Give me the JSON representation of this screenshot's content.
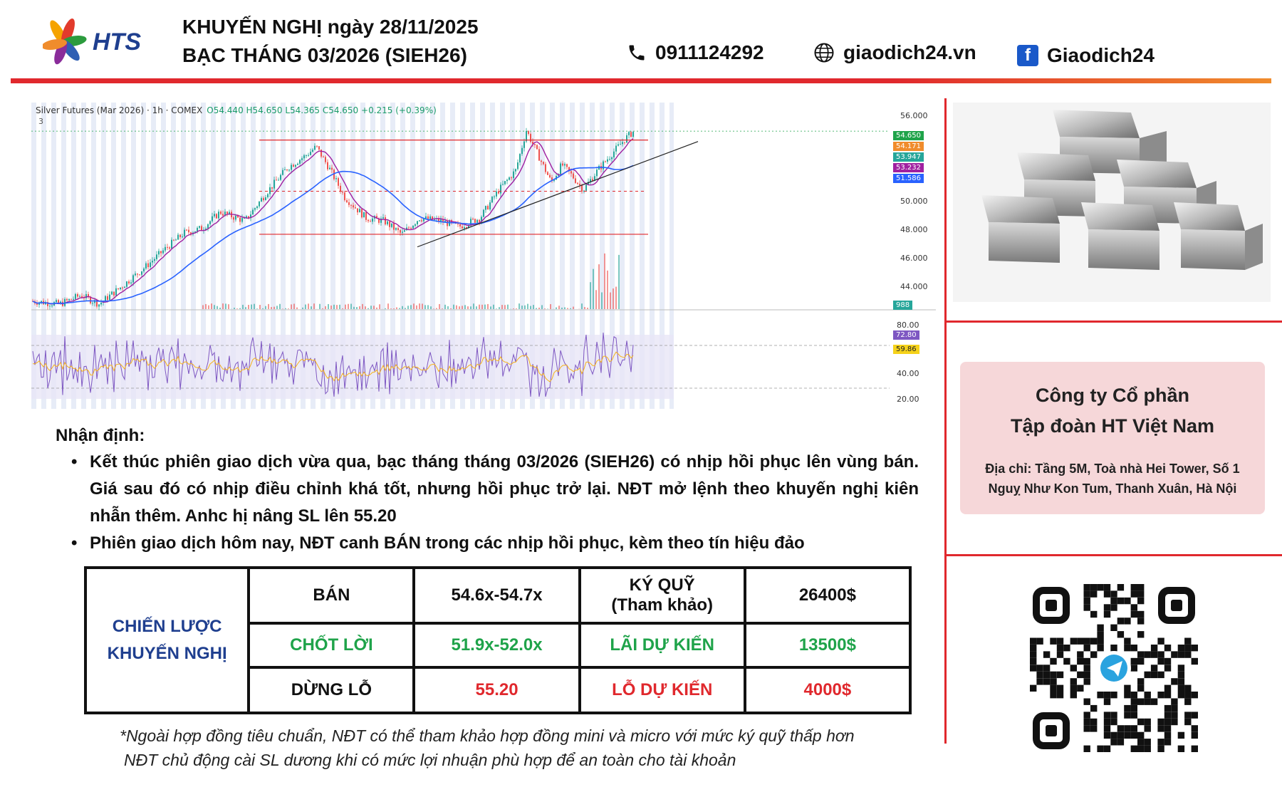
{
  "header": {
    "logo_text": "HTS",
    "title_line1": "KHUYẾN NGHỊ ngày 28/11/2025",
    "title_line2": "BẠC THÁNG 03/2026 (SIEH26)",
    "phone": "0911124292",
    "website": "giaodich24.vn",
    "facebook": "Giaodich24",
    "facebook_icon_glyph": "f"
  },
  "chart": {
    "header_symbol": "Silver Futures (Mar 2026) · 1h · COMEX",
    "header_ohlc": "O54.440 H54.650 L54.365 C54.650 +0.215 (+0.39%)",
    "sub_label": "3",
    "price_axis": [
      "56.000",
      "50.000",
      "48.000",
      "46.000",
      "44.000"
    ],
    "price_tags": [
      "54.650",
      "54.171",
      "53.947",
      "53.232",
      "51.586"
    ],
    "volume_tag": "988",
    "rsi_axis": [
      "80.00",
      "40.00",
      "20.00"
    ],
    "rsi_tags": [
      "72.80",
      "59.86"
    ],
    "colors": {
      "up": "#26a69a",
      "down": "#ef5350",
      "ma_short": "#a020a0",
      "ma_long": "#2962ff",
      "rsi": "#7e57c2"
    }
  },
  "analysis": {
    "heading": "Nhận định:",
    "bullets": [
      "Kết thúc phiên giao dịch vừa qua, bạc tháng tháng 03/2026 (SIEH26) có nhịp hồi phục lên vùng bán. Giá sau đó có nhịp điều chỉnh khá tốt, nhưng hồi phục trở lại. NĐT mở lệnh theo khuyến nghị kiên nhẫn thêm. Anhc hị nâng SL lên 55.20",
      "Phiên giao dịch hôm nay, NĐT canh BÁN trong các nhịp hồi phục, kèm theo tín hiệu đảo"
    ]
  },
  "strategy": {
    "title_line1": "CHIẾN LƯỢC",
    "title_line2": "KHUYẾN NGHỊ",
    "rows": [
      {
        "action": "BÁN",
        "price": "54.6x-54.7x",
        "label": "KÝ QUỸ",
        "label2": "(Tham khảo)",
        "amount": "26400$"
      },
      {
        "action": "CHỐT LỜI",
        "price": "51.9x-52.0x",
        "label": "LÃI DỰ KIẾN",
        "label2": "",
        "amount": "13500$"
      },
      {
        "action": "DỪNG LỖ",
        "price": "55.20",
        "label": "LỖ DỰ KIẾN",
        "label2": "",
        "amount": "4000$"
      }
    ]
  },
  "company": {
    "name_line1": "Công ty Cổ phần",
    "name_line2": "Tập đoàn HT Việt Nam",
    "address": "Địa chỉ: Tầng 5M, Toà nhà Hei Tower, Số 1 Nguỵ Như Kon Tum, Thanh Xuân, Hà Nội"
  },
  "footnote": {
    "line1": "*Ngoài hợp đồng tiêu chuẩn, NĐT có thể tham khảo hợp đồng mini và micro với mức ký quỹ thấp hơn",
    "line2": "NĐT chủ động cài SL dương khi có mức lợi nhuận phù hợp để an toàn cho tài khoản"
  }
}
